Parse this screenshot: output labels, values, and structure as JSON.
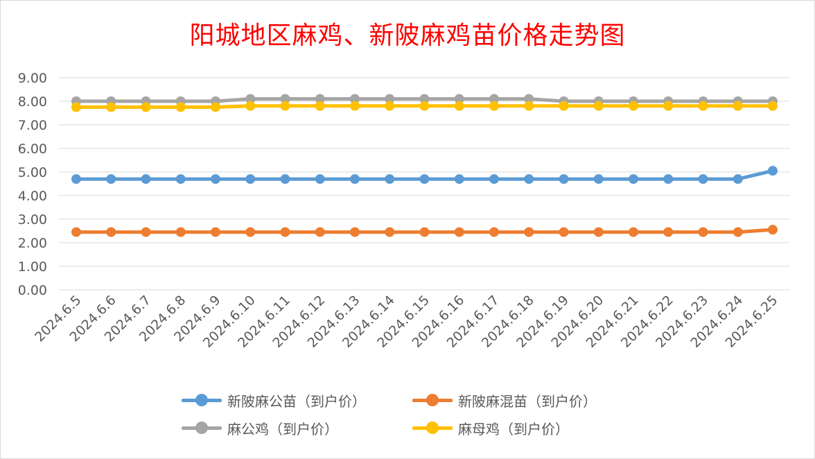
{
  "chart_data": {
    "type": "line",
    "title": "阳城地区麻鸡、新陂麻鸡苗价格走势图",
    "categories": [
      "2024.6.5",
      "2024.6.6",
      "2024.6.7",
      "2024.6.8",
      "2024.6.9",
      "2024.6.10",
      "2024.6.11",
      "2024.6.12",
      "2024.6.13",
      "2024.6.14",
      "2024.6.15",
      "2024.6.16",
      "2024.6.17",
      "2024.6.18",
      "2024.6.19",
      "2024.6.20",
      "2024.6.21",
      "2024.6.22",
      "2024.6.23",
      "2024.6.24",
      "2024.6.25"
    ],
    "ylim": [
      0,
      9
    ],
    "yticks": [
      "0.00",
      "1.00",
      "2.00",
      "3.00",
      "4.00",
      "5.00",
      "6.00",
      "7.00",
      "8.00",
      "9.00"
    ],
    "grid": true,
    "legend_position": "bottom",
    "series": [
      {
        "name": "新陂麻公苗（到户价）",
        "color": "#5b9bd5",
        "values": [
          4.7,
          4.7,
          4.7,
          4.7,
          4.7,
          4.7,
          4.7,
          4.7,
          4.7,
          4.7,
          4.7,
          4.7,
          4.7,
          4.7,
          4.7,
          4.7,
          4.7,
          4.7,
          4.7,
          4.7,
          5.05
        ]
      },
      {
        "name": "新陂麻混苗（到户价）",
        "color": "#ed7d31",
        "values": [
          2.45,
          2.45,
          2.45,
          2.45,
          2.45,
          2.45,
          2.45,
          2.45,
          2.45,
          2.45,
          2.45,
          2.45,
          2.45,
          2.45,
          2.45,
          2.45,
          2.45,
          2.45,
          2.45,
          2.45,
          2.55
        ]
      },
      {
        "name": "麻公鸡（到户价）",
        "color": "#a5a5a5",
        "values": [
          8.0,
          8.0,
          8.0,
          8.0,
          8.0,
          8.1,
          8.1,
          8.1,
          8.1,
          8.1,
          8.1,
          8.1,
          8.1,
          8.1,
          8.0,
          8.0,
          8.0,
          8.0,
          8.0,
          8.0,
          8.0
        ]
      },
      {
        "name": "麻母鸡（到户价）",
        "color": "#ffc000",
        "values": [
          7.75,
          7.75,
          7.75,
          7.75,
          7.75,
          7.8,
          7.8,
          7.8,
          7.8,
          7.8,
          7.8,
          7.8,
          7.8,
          7.8,
          7.8,
          7.8,
          7.8,
          7.8,
          7.8,
          7.8,
          7.8
        ]
      }
    ]
  }
}
